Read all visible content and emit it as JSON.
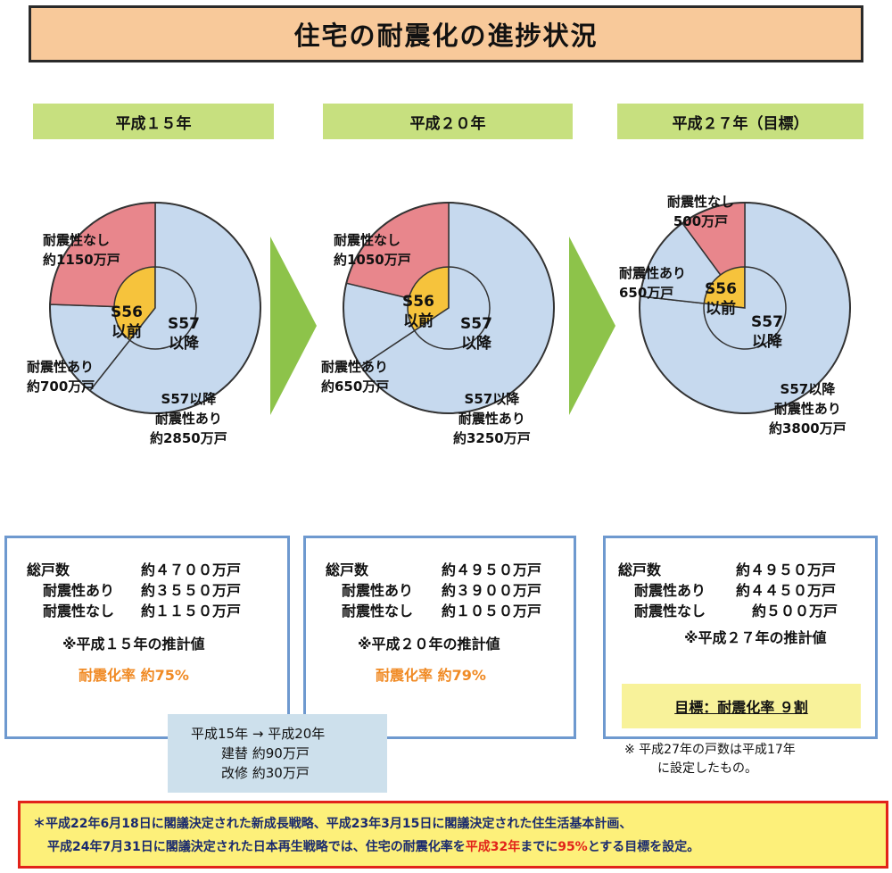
{
  "title": "住宅の耐震化の進捗状況",
  "colors": {
    "title_bg": "#f8c99a",
    "year_tab_bg": "#c7e07f",
    "pie_blue": "#c6d9ee",
    "pie_red": "#e8868c",
    "pie_yellow": "#f6c33c",
    "arrow_green": "#8dc34a",
    "box_border": "#6e99cf",
    "rate_orange": "#f08a24",
    "goal_bg": "#f8f29a",
    "change_bg": "#cde0ec",
    "bottom_border": "#e2231a",
    "bottom_bg": "#fdf07a"
  },
  "chart_data": [
    {
      "type": "pie",
      "title": "平成１５年",
      "unit": "万戸",
      "outer_ring": [
        {
          "name": "S57以降 耐震性あり",
          "value": 2850
        },
        {
          "name": "耐震性あり",
          "value": 700
        },
        {
          "name": "耐震性なし",
          "value": 1150
        }
      ],
      "inner_ring": [
        "S56以前",
        "S57以降"
      ],
      "labels": {
        "no": [
          "耐震性なし",
          "約1150万戸"
        ],
        "yes_old": [
          "耐震性あり",
          "約700万戸"
        ],
        "new": [
          "S57以降",
          "耐震性あり",
          "約2850万戸"
        ],
        "inner_old": [
          "S56",
          "以前"
        ],
        "inner_new": [
          "S57",
          "以降"
        ]
      }
    },
    {
      "type": "pie",
      "title": "平成２０年",
      "unit": "万戸",
      "outer_ring": [
        {
          "name": "S57以降 耐震性あり",
          "value": 3250
        },
        {
          "name": "耐震性あり",
          "value": 650
        },
        {
          "name": "耐震性なし",
          "value": 1050
        }
      ],
      "inner_ring": [
        "S56以前",
        "S57以降"
      ],
      "labels": {
        "no": [
          "耐震性なし",
          "約1050万戸"
        ],
        "yes_old": [
          "耐震性あり",
          "約650万戸"
        ],
        "new": [
          "S57以降",
          "耐震性あり",
          "約3250万戸"
        ],
        "inner_old": [
          "S56",
          "以前"
        ],
        "inner_new": [
          "S57",
          "以降"
        ]
      }
    },
    {
      "type": "pie",
      "title": "平成２７年（目標）",
      "unit": "万戸",
      "outer_ring": [
        {
          "name": "S57以降 耐震性あり",
          "value": 3800
        },
        {
          "name": "耐震性あり",
          "value": 650
        },
        {
          "name": "耐震性なし",
          "value": 500
        }
      ],
      "inner_ring": [
        "S56以前",
        "S57以降"
      ],
      "labels": {
        "no": [
          "耐震性なし",
          "500万戸"
        ],
        "yes_old": [
          "耐震性あり",
          "650万戸"
        ],
        "new": [
          "S57以降",
          "耐震性あり",
          "約3800万戸"
        ],
        "inner_old": [
          "S56",
          "以前"
        ],
        "inner_new": [
          "S57",
          "以降"
        ]
      }
    }
  ],
  "summaries": [
    {
      "rows": [
        {
          "label": "総戸数",
          "value": "約４７００万戸"
        },
        {
          "label": "耐震性あり",
          "value": "約３５５０万戸"
        },
        {
          "label": "耐震性なし",
          "value": "約１１５０万戸"
        }
      ],
      "note": "※平成１５年の推計値",
      "rate": "耐震化率  約75%"
    },
    {
      "rows": [
        {
          "label": "総戸数",
          "value": "約４９５０万戸"
        },
        {
          "label": "耐震性あり",
          "value": "約３９００万戸"
        },
        {
          "label": "耐震性なし",
          "value": "約１０５０万戸"
        }
      ],
      "note": "※平成２０年の推計値",
      "rate": "耐震化率  約79%"
    },
    {
      "rows": [
        {
          "label": "総戸数",
          "value": "約４９５０万戸"
        },
        {
          "label": "耐震性あり",
          "value": "約４４５０万戸"
        },
        {
          "label": "耐震性なし",
          "value": "約５００万戸"
        }
      ],
      "note": "※平成２７年の推計値",
      "goal": "目標：耐震化率 ９割"
    }
  ],
  "change": {
    "line1": "平成15年 → 平成20年",
    "line2": "建替  約90万戸",
    "line3": "改修  約30万戸"
  },
  "footnote": {
    "line1": "※  平成27年の戸数は平成17年",
    "line2": "に設定したもの。"
  },
  "bottom": {
    "line1": "＊平成22年6月18日に閣議決定された新成長戦略、平成23年3月15日に閣議決定された住生活基本計画、",
    "line2_a": "平成24年7月31日に閣議決定された日本再生戦略では、住宅の耐震化率を",
    "line2_year": "平成32年",
    "line2_b": "までに",
    "line2_pct": "95%",
    "line2_c": "とする目標を設定。"
  }
}
